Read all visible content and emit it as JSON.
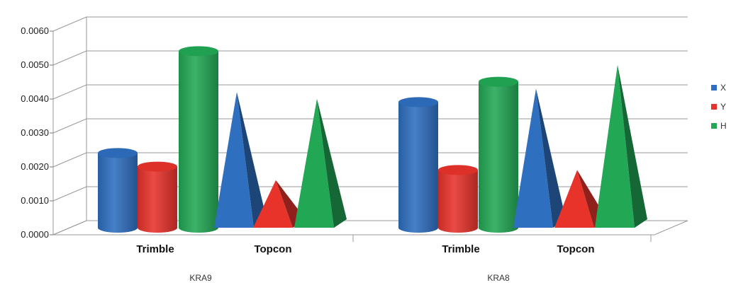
{
  "chart_data": {
    "type": "bar",
    "subtype": "3d-cylinder-pyramid",
    "title": "",
    "xlabel": "",
    "ylabel": "",
    "ylim": [
      0,
      0.006
    ],
    "yticks": [
      "0.0000",
      "0.0010",
      "0.0020",
      "0.0030",
      "0.0040",
      "0.0050",
      "0.0060"
    ],
    "grid": true,
    "legend_position": "right",
    "groups": [
      {
        "name": "KRA9",
        "instruments": [
          {
            "name": "Trimble",
            "shape": "cylinder",
            "X": 0.0022,
            "Y": 0.0018,
            "H": 0.0052
          },
          {
            "name": "Topcon",
            "shape": "pyramid",
            "X": 0.004,
            "Y": 0.0014,
            "H": 0.0038
          }
        ]
      },
      {
        "name": "KRA8",
        "instruments": [
          {
            "name": "Trimble",
            "shape": "cylinder",
            "X": 0.0037,
            "Y": 0.0017,
            "H": 0.0043
          },
          {
            "name": "Topcon",
            "shape": "pyramid",
            "X": 0.0041,
            "Y": 0.0017,
            "H": 0.0048
          }
        ]
      }
    ],
    "series": [
      {
        "name": "X",
        "color": "#2e6fc0"
      },
      {
        "name": "Y",
        "color": "#e8332b"
      },
      {
        "name": "H",
        "color": "#22a855"
      }
    ]
  }
}
